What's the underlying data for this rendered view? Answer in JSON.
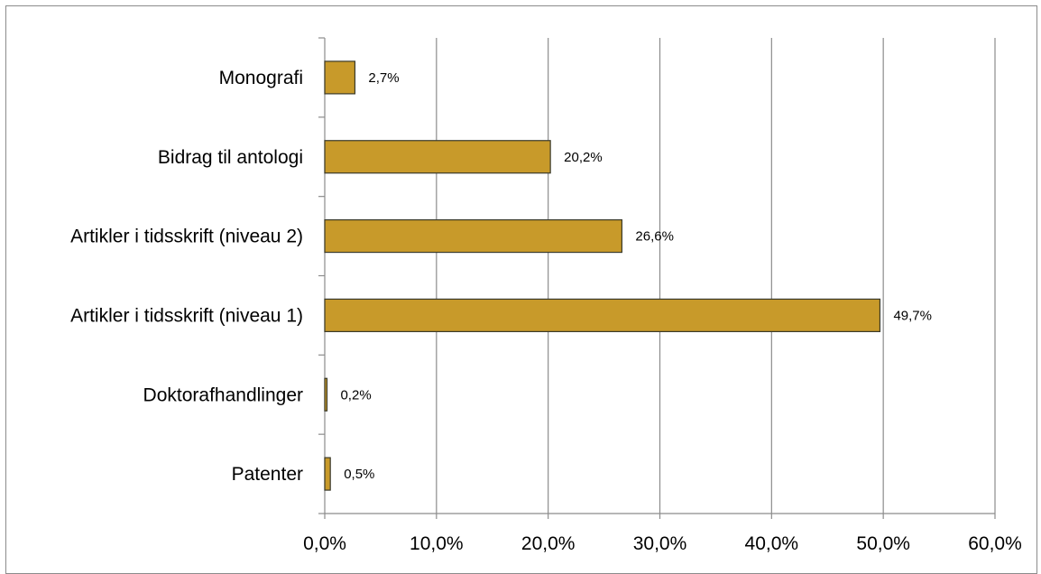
{
  "chart_data": {
    "type": "bar",
    "orientation": "horizontal",
    "categories": [
      "Monografi",
      "Bidrag til antologi",
      "Artikler i tidsskrift (niveau 2)",
      "Artikler i tidsskrift (niveau 1)",
      "Doktorafhandlinger",
      "Patenter"
    ],
    "values": [
      2.7,
      20.2,
      26.6,
      49.7,
      0.2,
      0.5
    ],
    "data_labels": [
      "2,7%",
      "20,2%",
      "26,6%",
      "49,7%",
      "0,2%",
      "0,5%"
    ],
    "xlim": [
      0,
      60
    ],
    "x_ticks": [
      0,
      10,
      20,
      30,
      40,
      50,
      60
    ],
    "x_tick_labels": [
      "0,0%",
      "10,0%",
      "20,0%",
      "30,0%",
      "40,0%",
      "50,0%",
      "60,0%"
    ],
    "grid": true,
    "title": "",
    "xlabel": "",
    "ylabel": "",
    "colors": {
      "bar_fill": "#C89A2A",
      "bar_stroke": "#3a3a2a",
      "gridline": "#8c8c8c",
      "axis": "#8c8c8c"
    }
  }
}
